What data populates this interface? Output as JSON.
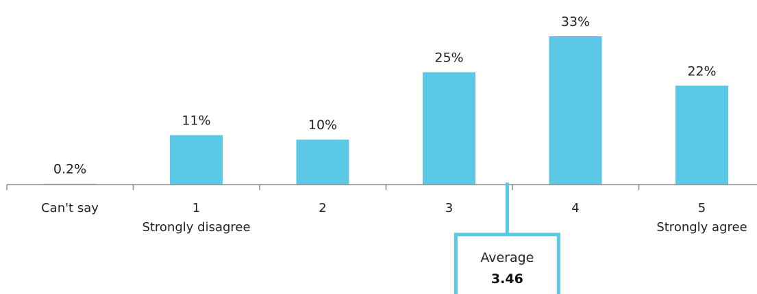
{
  "chart_data": {
    "type": "bar",
    "categories": [
      "Can't say",
      "1",
      "2",
      "3",
      "4",
      "5"
    ],
    "category_sublabels": [
      "",
      "Strongly disagree",
      "",
      "",
      "",
      "Strongly agree"
    ],
    "values": [
      0.2,
      11,
      10,
      25,
      33,
      22
    ],
    "value_labels": [
      "0.2%",
      "11%",
      "10%",
      "25%",
      "33%",
      "22%"
    ],
    "ylim": [
      0,
      33
    ],
    "bar_color": "#5bc8e6",
    "grid": false,
    "average": {
      "label": "Average",
      "value": 3.46,
      "value_label": "3.46",
      "color": "#5bc8e6"
    }
  }
}
